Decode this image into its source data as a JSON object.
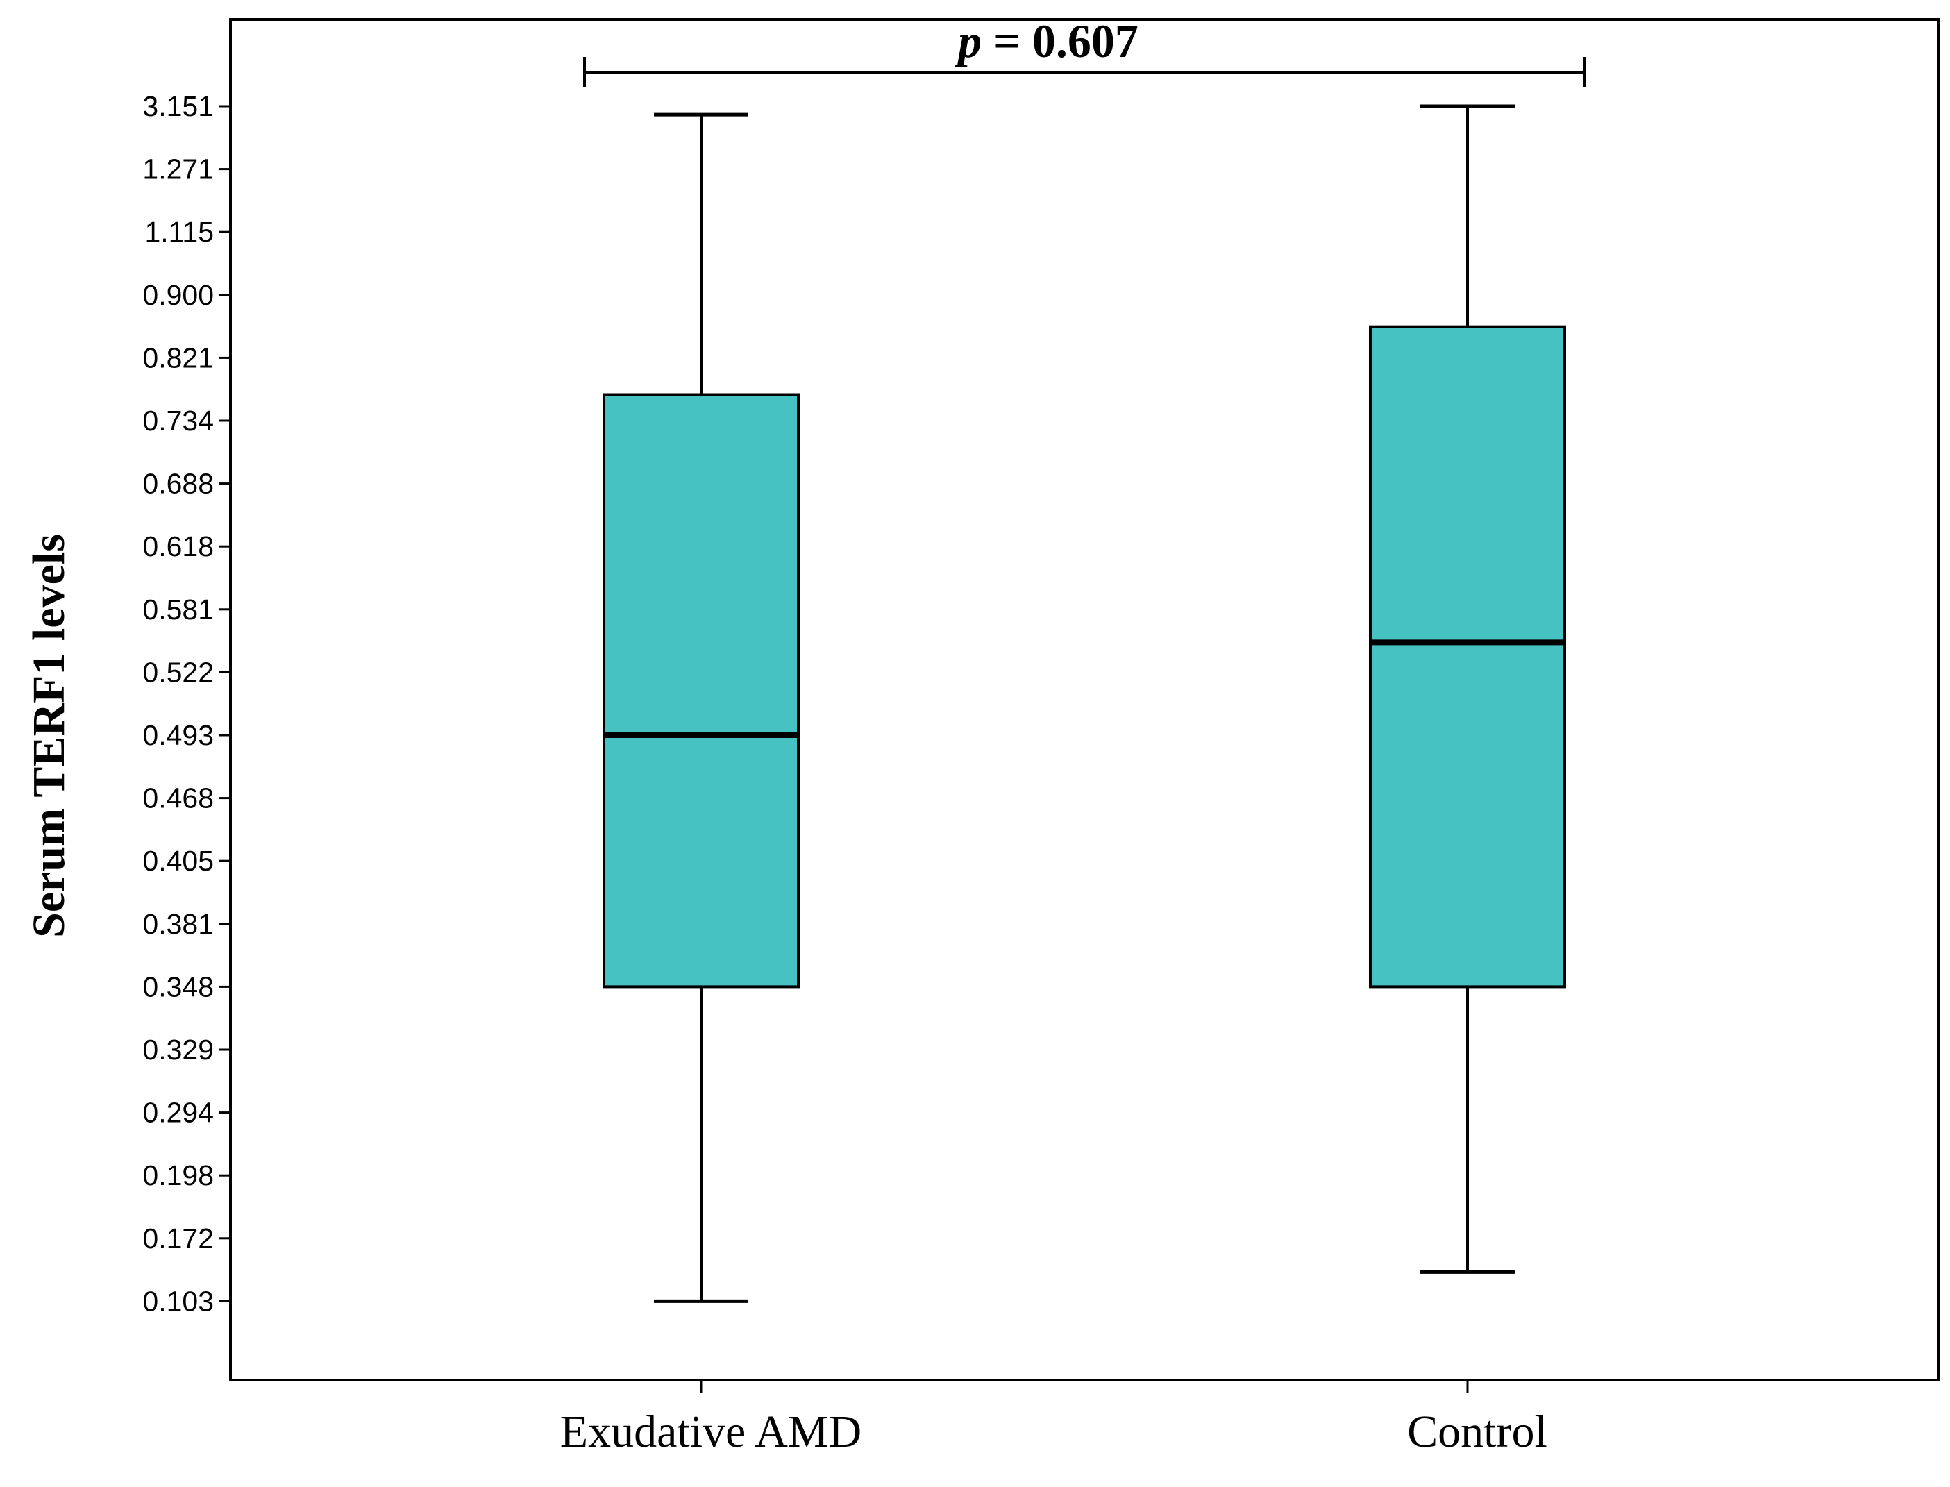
{
  "chart_data": {
    "type": "box",
    "title": "",
    "xlabel": "",
    "ylabel": "Serum TERF1 levels",
    "y_tick_labels": [
      "3.151",
      "1.271",
      "1.115",
      "0.900",
      "0.821",
      "0.734",
      "0.688",
      "0.618",
      "0.581",
      "0.522",
      "0.493",
      "0.468",
      "0.405",
      "0.381",
      "0.348",
      "0.329",
      "0.294",
      "0.198",
      "0.172",
      "0.103"
    ],
    "y_scale": "rank (tick labels placed at equal spacing)",
    "categories": [
      "Exudative AMD",
      "Control"
    ],
    "boxes": [
      {
        "category": "Exudative AMD",
        "min": 0.103,
        "q1": 0.348,
        "median": 0.493,
        "q3": 0.77,
        "max": 2.9,
        "color": "#47C2C3"
      },
      {
        "category": "Control",
        "min": 0.135,
        "q1": 0.348,
        "median": 0.55,
        "q3": 0.86,
        "max": 3.151,
        "color": "#47C2C3"
      }
    ],
    "annotation": {
      "italic_part": "p",
      "rest": " = 0.607",
      "between": [
        "Exudative AMD",
        "Control"
      ]
    },
    "grid": false,
    "legend": "none"
  }
}
